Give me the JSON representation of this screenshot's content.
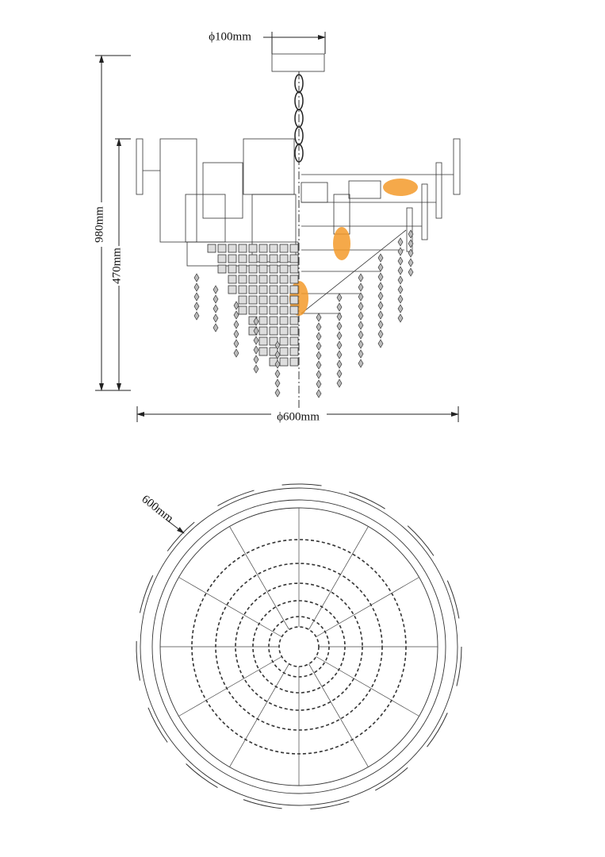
{
  "dimensions": {
    "canopy_diameter": "ϕ100mm",
    "height_total": "980mm",
    "height_body": "470mm",
    "width": "ϕ600mm",
    "top_view_diameter": "600mm"
  }
}
